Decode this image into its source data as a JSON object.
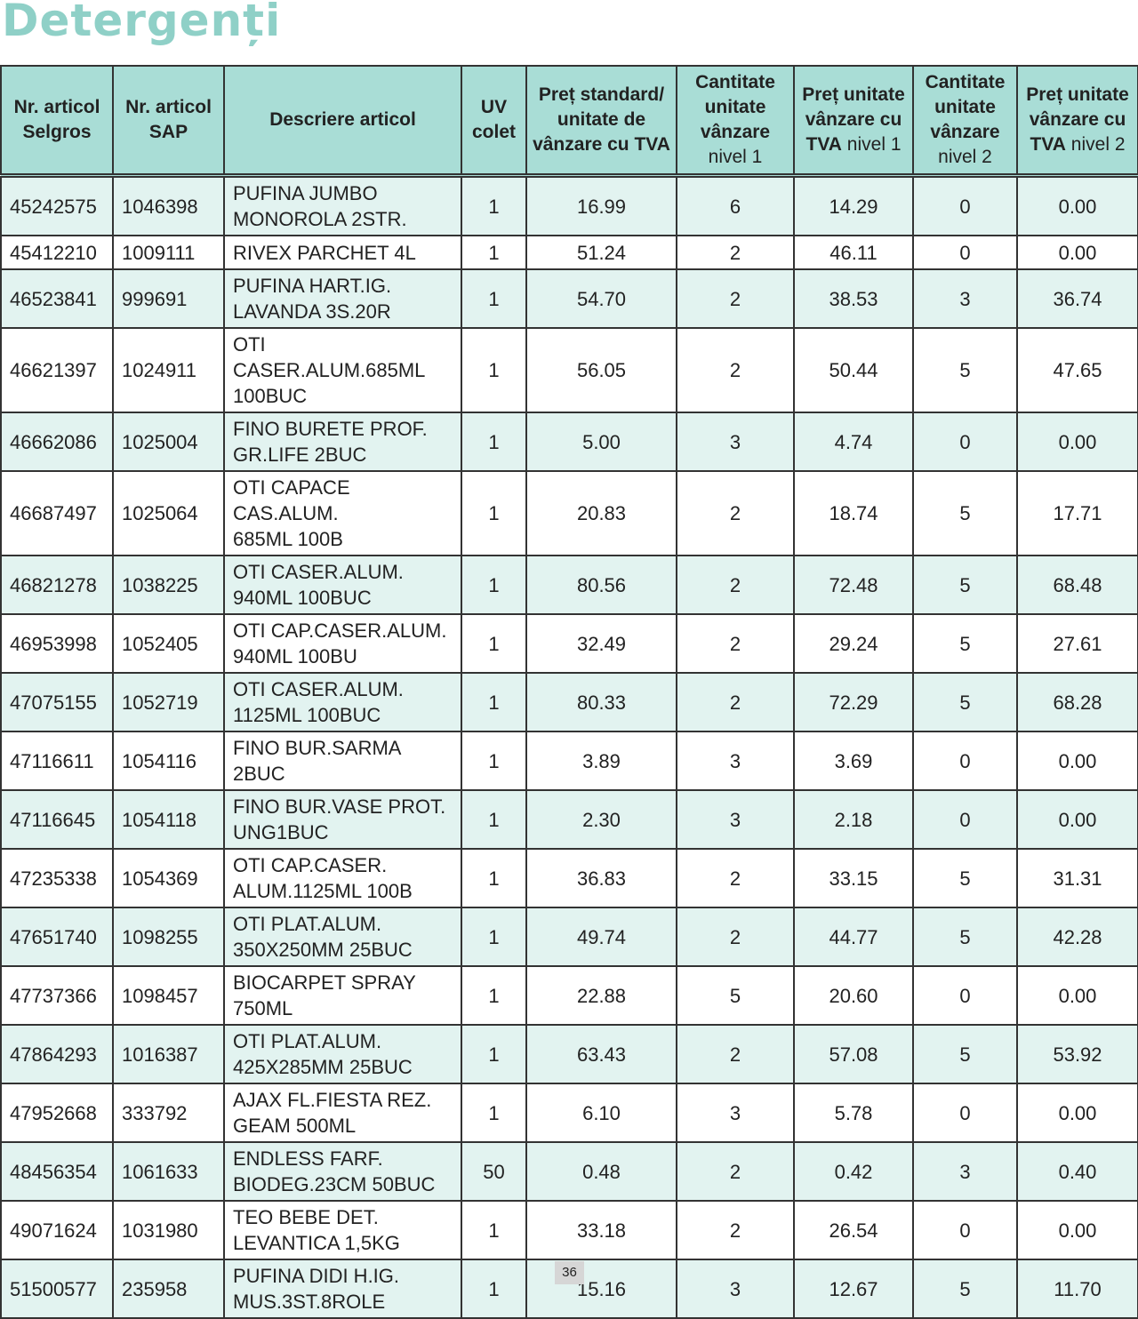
{
  "header": {
    "title": "Detergenți"
  },
  "table": {
    "columns": [
      [
        "Nr. articol Selgros"
      ],
      [
        "Nr. articol SAP"
      ],
      [
        "Descriere articol"
      ],
      [
        "UV colet"
      ],
      [
        "Preț standard/ unitate de vânzare cu TVA"
      ],
      [
        "Cantitate unitate vânzare",
        "nivel 1"
      ],
      [
        "Preț unitate vânzare cu TVA",
        "nivel 1"
      ],
      [
        "Cantitate unitate vânzare",
        "nivel 2"
      ],
      [
        "Preț unitate vânzare cu TVA",
        "nivel 2"
      ]
    ],
    "rows": [
      [
        "45242575",
        "1046398",
        [
          "PUFINA JUMBO",
          "MONOROLA 2STR."
        ],
        "1",
        "16.99",
        "6",
        "14.29",
        "0",
        "0.00"
      ],
      [
        "45412210",
        "1009111",
        [
          "RIVEX PARCHET 4L"
        ],
        "1",
        "51.24",
        "2",
        "46.11",
        "0",
        "0.00"
      ],
      [
        "46523841",
        "999691",
        [
          "PUFINA HART.IG.",
          "LAVANDA  3S.20R"
        ],
        "1",
        "54.70",
        "2",
        "38.53",
        "3",
        "36.74"
      ],
      [
        "46621397",
        "1024911",
        [
          "OTI CASER.ALUM.685ML",
          "100BUC"
        ],
        "1",
        "56.05",
        "2",
        "50.44",
        "5",
        "47.65"
      ],
      [
        "46662086",
        "1025004",
        [
          "FINO BURETE PROF.",
          "GR.LIFE 2BUC"
        ],
        "1",
        "5.00",
        "3",
        "4.74",
        "0",
        "0.00"
      ],
      [
        "46687497",
        "1025064",
        [
          "OTI CAPACE CAS.ALUM.",
          "685ML 100B"
        ],
        "1",
        "20.83",
        "2",
        "18.74",
        "5",
        "17.71"
      ],
      [
        "46821278",
        "1038225",
        [
          "OTI CASER.ALUM.",
          "940ML 100BUC"
        ],
        "1",
        "80.56",
        "2",
        "72.48",
        "5",
        "68.48"
      ],
      [
        "46953998",
        "1052405",
        [
          "OTI CAP.CASER.ALUM.",
          "940ML 100BU"
        ],
        "1",
        "32.49",
        "2",
        "29.24",
        "5",
        "27.61"
      ],
      [
        "47075155",
        "1052719",
        [
          "OTI CASER.ALUM.",
          "1125ML 100BUC"
        ],
        "1",
        "80.33",
        "2",
        "72.29",
        "5",
        "68.28"
      ],
      [
        "47116611",
        "1054116",
        [
          "FINO BUR.SARMA 2BUC"
        ],
        "1",
        "3.89",
        "3",
        "3.69",
        "0",
        "0.00"
      ],
      [
        "47116645",
        "1054118",
        [
          "FINO BUR.VASE PROT.",
          "UNG1BUC"
        ],
        "1",
        "2.30",
        "3",
        "2.18",
        "0",
        "0.00"
      ],
      [
        "47235338",
        "1054369",
        [
          "OTI CAP.CASER.",
          "ALUM.1125ML 100B"
        ],
        "1",
        "36.83",
        "2",
        "33.15",
        "5",
        "31.31"
      ],
      [
        "47651740",
        "1098255",
        [
          "OTI PLAT.ALUM.",
          "350X250MM 25BUC"
        ],
        "1",
        "49.74",
        "2",
        "44.77",
        "5",
        "42.28"
      ],
      [
        "47737366",
        "1098457",
        [
          "BIOCARPET SPRAY",
          "750ML"
        ],
        "1",
        "22.88",
        "5",
        "20.60",
        "0",
        "0.00"
      ],
      [
        "47864293",
        "1016387",
        [
          "OTI PLAT.ALUM.",
          "425X285MM  25BUC"
        ],
        "1",
        "63.43",
        "2",
        "57.08",
        "5",
        "53.92"
      ],
      [
        "47952668",
        "333792",
        [
          "AJAX FL.FIESTA REZ.",
          "GEAM 500ML"
        ],
        "1",
        "6.10",
        "3",
        "5.78",
        "0",
        "0.00"
      ],
      [
        "48456354",
        "1061633",
        [
          "ENDLESS FARF.",
          "BIODEG.23CM 50BUC"
        ],
        "50",
        "0.48",
        "2",
        "0.42",
        "3",
        "0.40"
      ],
      [
        "49071624",
        "1031980",
        [
          "TEO BEBE DET.",
          "LEVANTICA 1,5KG"
        ],
        "1",
        "33.18",
        "2",
        "26.54",
        "0",
        "0.00"
      ],
      [
        "51500577",
        "235958",
        [
          "PUFINA DIDI H.IG.",
          "MUS.3ST.8ROLE"
        ],
        "1",
        "15.16",
        "3",
        "12.67",
        "5",
        "11.70"
      ]
    ]
  },
  "footer": {
    "page": "36"
  }
}
